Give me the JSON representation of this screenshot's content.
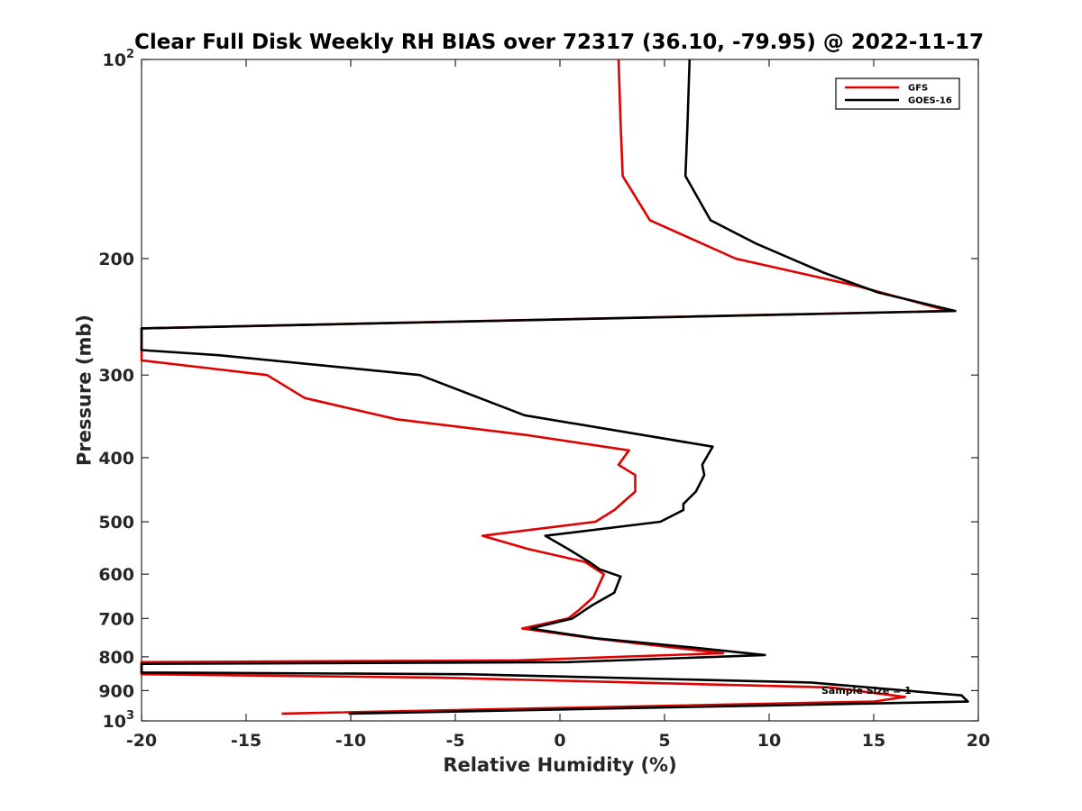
{
  "chart_data": {
    "type": "line",
    "title": "Clear Full Disk Weekly RH BIAS over 72317 (36.10, -79.95) @ 2022-11-17",
    "xlabel": "Relative Humidity (%)",
    "ylabel": "Pressure (mb)",
    "xlim": [
      -20,
      20
    ],
    "ylim": [
      100,
      1000
    ],
    "y_scale": "log",
    "y_reversed": true,
    "grid": false,
    "legend_position": "top-right",
    "x_ticks": [
      "-20",
      "-15",
      "-10",
      "-5",
      "0",
      "5",
      "10",
      "15",
      "20"
    ],
    "y_ticks": [
      {
        "label": "10",
        "sup": "2",
        "value": 100
      },
      {
        "label": "200",
        "value": 200
      },
      {
        "label": "300",
        "value": 300
      },
      {
        "label": "400",
        "value": 400
      },
      {
        "label": "500",
        "value": 500
      },
      {
        "label": "600",
        "value": 600
      },
      {
        "label": "700",
        "value": 700
      },
      {
        "label": "800",
        "value": 800
      },
      {
        "label": "900",
        "value": 900
      },
      {
        "label": "10",
        "sup": "3",
        "value": 1000
      }
    ],
    "annotation": "Sample Size = 1",
    "series": [
      {
        "name": "GFS",
        "color": "#e00000",
        "points": [
          [
            2.8,
            100
          ],
          [
            2.9,
            125
          ],
          [
            3.0,
            150
          ],
          [
            4.3,
            175
          ],
          [
            8.4,
            200
          ],
          [
            14.2,
            220
          ],
          [
            18.6,
            240
          ],
          [
            -20,
            255
          ],
          [
            -20,
            285
          ],
          [
            -14.0,
            300
          ],
          [
            -12.2,
            325
          ],
          [
            -7.8,
            350
          ],
          [
            -1.5,
            370
          ],
          [
            3.3,
            390
          ],
          [
            2.8,
            410
          ],
          [
            3.6,
            425
          ],
          [
            3.6,
            450
          ],
          [
            2.6,
            480
          ],
          [
            1.7,
            500
          ],
          [
            -3.7,
            525
          ],
          [
            -1.5,
            550
          ],
          [
            1.2,
            575
          ],
          [
            2.1,
            600
          ],
          [
            1.6,
            650
          ],
          [
            0.9,
            680
          ],
          [
            0.4,
            700
          ],
          [
            -1.8,
            725
          ],
          [
            1.6,
            750
          ],
          [
            7.8,
            790
          ],
          [
            -2.0,
            810
          ],
          [
            -20,
            815
          ],
          [
            -20,
            850
          ],
          [
            -6.0,
            860
          ],
          [
            13.0,
            890
          ],
          [
            16.5,
            920
          ],
          [
            15.0,
            935
          ],
          [
            -13.3,
            975
          ]
        ]
      },
      {
        "name": "GOES-16",
        "color": "#000000",
        "points": [
          [
            6.2,
            100
          ],
          [
            6.1,
            125
          ],
          [
            6.0,
            150
          ],
          [
            7.2,
            175
          ],
          [
            9.4,
            190
          ],
          [
            12.6,
            210
          ],
          [
            15.2,
            225
          ],
          [
            18.9,
            240
          ],
          [
            -20,
            255
          ],
          [
            -20,
            275
          ],
          [
            -16.3,
            280
          ],
          [
            -6.7,
            300
          ],
          [
            -1.7,
            345
          ],
          [
            7.3,
            385
          ],
          [
            6.8,
            410
          ],
          [
            6.9,
            425
          ],
          [
            6.5,
            450
          ],
          [
            5.9,
            470
          ],
          [
            5.9,
            480
          ],
          [
            4.8,
            500
          ],
          [
            -0.7,
            525
          ],
          [
            0.4,
            550
          ],
          [
            1.4,
            575
          ],
          [
            1.9,
            590
          ],
          [
            2.9,
            605
          ],
          [
            2.6,
            640
          ],
          [
            1.5,
            670
          ],
          [
            0.6,
            700
          ],
          [
            -1.4,
            725
          ],
          [
            1.7,
            750
          ],
          [
            6.4,
            775
          ],
          [
            9.8,
            795
          ],
          [
            0.4,
            815
          ],
          [
            -20,
            820
          ],
          [
            -20,
            845
          ],
          [
            -4.5,
            850
          ],
          [
            12.0,
            875
          ],
          [
            19.2,
            915
          ],
          [
            19.5,
            935
          ],
          [
            -10.1,
            975
          ]
        ]
      }
    ]
  }
}
